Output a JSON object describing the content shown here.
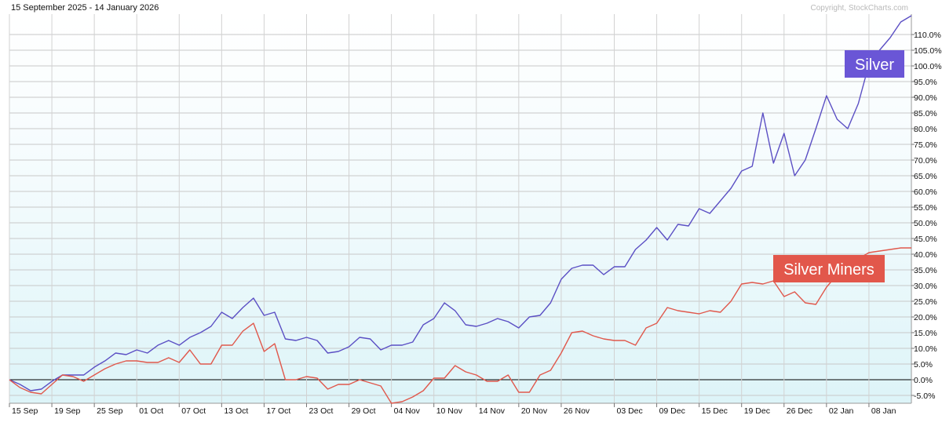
{
  "header": {
    "date_range": "15 September 2025 - 14 January 2026",
    "copyright": "Copyright, StockCharts.com"
  },
  "chart_data": {
    "type": "line",
    "x": [
      "15 Sep",
      "16 Sep",
      "17 Sep",
      "18 Sep",
      "19 Sep",
      "22 Sep",
      "23 Sep",
      "24 Sep",
      "25 Sep",
      "26 Sep",
      "29 Sep",
      "30 Sep",
      "01 Oct",
      "02 Oct",
      "03 Oct",
      "06 Oct",
      "07 Oct",
      "08 Oct",
      "09 Oct",
      "10 Oct",
      "13 Oct",
      "14 Oct",
      "15 Oct",
      "16 Oct",
      "17 Oct",
      "20 Oct",
      "21 Oct",
      "22 Oct",
      "23 Oct",
      "24 Oct",
      "27 Oct",
      "28 Oct",
      "29 Oct",
      "30 Oct",
      "31 Oct",
      "03 Nov",
      "04 Nov",
      "05 Nov",
      "06 Nov",
      "07 Nov",
      "10 Nov",
      "11 Nov",
      "12 Nov",
      "13 Nov",
      "14 Nov",
      "17 Nov",
      "18 Nov",
      "19 Nov",
      "20 Nov",
      "21 Nov",
      "24 Nov",
      "25 Nov",
      "26 Nov",
      "27 Nov",
      "28 Nov",
      "01 Dec",
      "02 Dec",
      "03 Dec",
      "04 Dec",
      "05 Dec",
      "08 Dec",
      "09 Dec",
      "10 Dec",
      "11 Dec",
      "12 Dec",
      "15 Dec",
      "16 Dec",
      "17 Dec",
      "18 Dec",
      "19 Dec",
      "22 Dec",
      "23 Dec",
      "24 Dec",
      "26 Dec",
      "29 Dec",
      "30 Dec",
      "31 Dec",
      "02 Jan",
      "05 Jan",
      "06 Jan",
      "07 Jan",
      "08 Jan",
      "09 Jan",
      "12 Jan",
      "13 Jan",
      "14 Jan"
    ],
    "x_ticks": [
      "15 Sep",
      "19 Sep",
      "25 Sep",
      "01 Oct",
      "07 Oct",
      "13 Oct",
      "17 Oct",
      "23 Oct",
      "29 Oct",
      "04 Nov",
      "10 Nov",
      "14 Nov",
      "20 Nov",
      "26 Nov",
      "03 Dec",
      "09 Dec",
      "15 Dec",
      "19 Dec",
      "26 Dec",
      "02 Jan",
      "08 Jan"
    ],
    "y_ticks": [
      "-5.0%",
      "0.0%",
      "5.0%",
      "10.0%",
      "15.0%",
      "20.0%",
      "25.0%",
      "30.0%",
      "35.0%",
      "40.0%",
      "45.0%",
      "50.0%",
      "55.0%",
      "60.0%",
      "65.0%",
      "70.0%",
      "75.0%",
      "80.0%",
      "85.0%",
      "90.0%",
      "95.0%",
      "100.0%",
      "105.0%",
      "110.0%"
    ],
    "ylim": [
      -7.5,
      116.5
    ],
    "grid": true,
    "series": [
      {
        "name": "Silver",
        "color": "#5b4fc4",
        "label_bg": "#6a56d6",
        "values": [
          0.0,
          -1.5,
          -3.5,
          -3.0,
          -0.5,
          1.5,
          1.5,
          1.5,
          4.0,
          6.0,
          8.5,
          8.0,
          9.5,
          8.5,
          11.0,
          12.5,
          11.0,
          13.5,
          15.0,
          17.0,
          21.5,
          19.5,
          23.0,
          26.0,
          20.5,
          21.5,
          13.0,
          12.5,
          13.5,
          12.5,
          8.5,
          9.0,
          10.5,
          13.5,
          13.0,
          9.5,
          11.0,
          11.0,
          12.0,
          17.5,
          19.5,
          24.5,
          22.0,
          17.5,
          17.0,
          18.0,
          19.5,
          18.5,
          16.5,
          20.0,
          20.5,
          24.5,
          32.0,
          35.5,
          36.5,
          36.5,
          33.5,
          36.0,
          36.0,
          41.5,
          44.5,
          48.5,
          44.5,
          49.5,
          49.0,
          54.5,
          53.0,
          57.0,
          61.0,
          66.5,
          68.0,
          85.0,
          69.0,
          78.5,
          65.0,
          70.0,
          80.0,
          90.5,
          83.0,
          80.0,
          88.0,
          100.5,
          105.0,
          109.0,
          114.0,
          116.0
        ]
      },
      {
        "name": "Silver Miners",
        "color": "#e0584c",
        "label_bg": "#e2574b",
        "values": [
          0.0,
          -2.5,
          -4.0,
          -4.5,
          -1.5,
          1.5,
          1.0,
          -0.5,
          1.5,
          3.5,
          5.0,
          6.0,
          6.0,
          5.5,
          5.5,
          7.0,
          5.5,
          9.5,
          5.0,
          5.0,
          11.0,
          11.0,
          15.5,
          18.0,
          9.0,
          11.5,
          0.0,
          0.0,
          1.0,
          0.5,
          -3.0,
          -1.5,
          -1.5,
          0.0,
          -1.0,
          -2.0,
          -7.5,
          -7.0,
          -5.5,
          -3.5,
          0.5,
          0.5,
          4.5,
          2.5,
          1.5,
          -0.5,
          -0.5,
          1.5,
          -4.0,
          -4.0,
          1.5,
          3.0,
          8.5,
          15.0,
          15.5,
          14.0,
          13.0,
          12.5,
          12.5,
          11.0,
          16.5,
          18.0,
          23.0,
          22.0,
          21.5,
          21.0,
          22.0,
          21.5,
          25.0,
          30.5,
          31.0,
          30.5,
          31.5,
          26.5,
          28.0,
          24.5,
          24.0,
          29.5,
          33.5,
          33.0,
          38.5,
          40.5,
          41.0,
          41.5,
          42.0,
          42.0
        ]
      }
    ]
  },
  "legend": {
    "silver": "Silver",
    "miners": "Silver Miners"
  }
}
